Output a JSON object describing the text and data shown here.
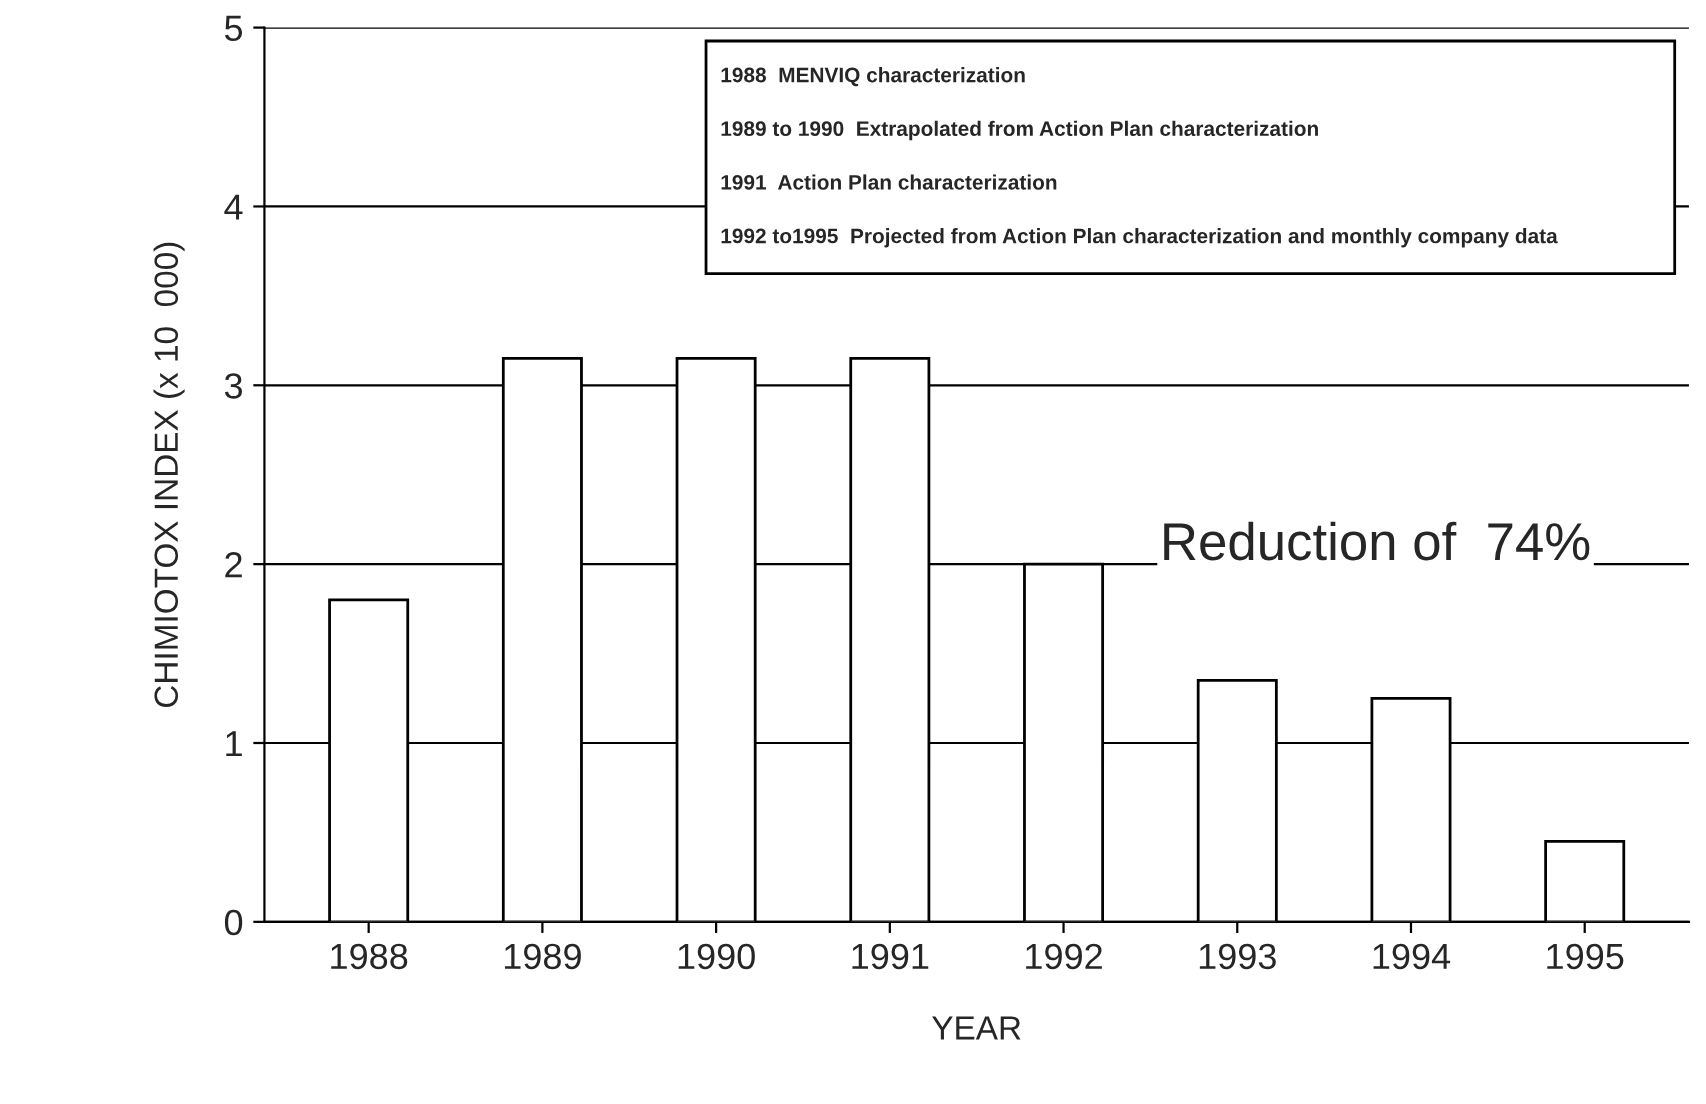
{
  "chart_data": {
    "type": "bar",
    "xlabel": "YEAR",
    "ylabel": "CHIMIOTOX INDEX (x 10  000)",
    "categories": [
      "1988",
      "1989",
      "1990",
      "1991",
      "1992",
      "1993",
      "1994",
      "1995"
    ],
    "values": [
      1.8,
      3.15,
      3.15,
      3.15,
      2.0,
      1.35,
      1.25,
      0.45
    ],
    "color": "#ffffff",
    "ylim": [
      0,
      5
    ],
    "yticks": [
      0,
      1,
      2,
      3,
      4,
      5
    ],
    "grid": "y",
    "annotations": [
      "1988  MENVIQ characterization",
      "1989 to 1990  Extrapolated from Action Plan characterization",
      "1991  Action Plan characterization",
      "1992 to1995  Projected from Action Plan characterization and monthly company data",
      "Reduction of  74%"
    ]
  }
}
